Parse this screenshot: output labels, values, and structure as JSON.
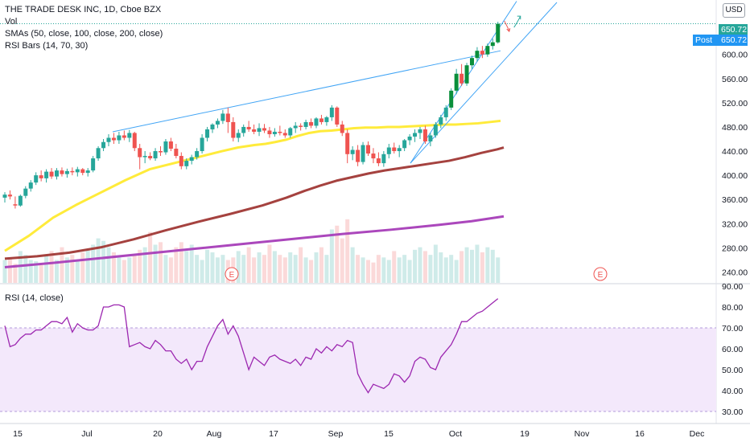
{
  "header": {
    "symbol_line": "THE TRADE DESK INC, 1D, Cboe BZX",
    "vol_label": "Vol",
    "sma_label": "SMAs (50, close, 100, close, 200, close)",
    "rsi_bars_label": "RSI Bars (14, 70, 30)",
    "currency": "USD"
  },
  "price_tags": {
    "last_price": "650.72",
    "post_label": "Post",
    "post_price": "650.72"
  },
  "rsi_pane": {
    "label": "RSI (14, close)"
  },
  "event_markers": [
    "E",
    "E"
  ],
  "chart_data": [
    {
      "type": "candlestick",
      "title": "THE TRADE DESK INC, 1D, Cboe BZX",
      "ylim": [
        222,
        690
      ],
      "y_ticks": [
        240,
        280,
        320,
        360,
        400,
        440,
        480,
        520,
        560,
        600
      ],
      "x_tick_labels": [
        "15",
        "Jul",
        "20",
        "Aug",
        "17",
        "Sep",
        "15",
        "Oct",
        "19",
        "Nov",
        "16",
        "Dec"
      ],
      "candles": [
        {
          "o": 363,
          "h": 372,
          "l": 355,
          "c": 368
        },
        {
          "o": 368,
          "h": 375,
          "l": 360,
          "c": 365
        },
        {
          "o": 352,
          "h": 365,
          "l": 345,
          "c": 350
        },
        {
          "o": 350,
          "h": 368,
          "l": 348,
          "c": 366
        },
        {
          "o": 366,
          "h": 382,
          "l": 362,
          "c": 378
        },
        {
          "o": 378,
          "h": 392,
          "l": 373,
          "c": 388
        },
        {
          "o": 388,
          "h": 405,
          "l": 384,
          "c": 400
        },
        {
          "o": 400,
          "h": 408,
          "l": 390,
          "c": 395
        },
        {
          "o": 395,
          "h": 410,
          "l": 388,
          "c": 406
        },
        {
          "o": 406,
          "h": 412,
          "l": 394,
          "c": 398
        },
        {
          "o": 398,
          "h": 412,
          "l": 393,
          "c": 408
        },
        {
          "o": 408,
          "h": 413,
          "l": 398,
          "c": 402
        },
        {
          "o": 402,
          "h": 411,
          "l": 396,
          "c": 407
        },
        {
          "o": 407,
          "h": 413,
          "l": 400,
          "c": 405
        },
        {
          "o": 405,
          "h": 414,
          "l": 398,
          "c": 410
        },
        {
          "o": 410,
          "h": 412,
          "l": 400,
          "c": 404
        },
        {
          "o": 404,
          "h": 412,
          "l": 398,
          "c": 408
        },
        {
          "o": 408,
          "h": 432,
          "l": 405,
          "c": 428
        },
        {
          "o": 428,
          "h": 448,
          "l": 424,
          "c": 445
        },
        {
          "o": 445,
          "h": 460,
          "l": 440,
          "c": 455
        },
        {
          "o": 455,
          "h": 468,
          "l": 448,
          "c": 462
        },
        {
          "o": 462,
          "h": 470,
          "l": 452,
          "c": 458
        },
        {
          "o": 458,
          "h": 472,
          "l": 452,
          "c": 466
        },
        {
          "o": 466,
          "h": 474,
          "l": 458,
          "c": 462
        },
        {
          "o": 462,
          "h": 475,
          "l": 455,
          "c": 470
        },
        {
          "o": 470,
          "h": 472,
          "l": 440,
          "c": 445
        },
        {
          "o": 445,
          "h": 452,
          "l": 410,
          "c": 430
        },
        {
          "o": 430,
          "h": 440,
          "l": 420,
          "c": 432
        },
        {
          "o": 432,
          "h": 438,
          "l": 425,
          "c": 428
        },
        {
          "o": 428,
          "h": 445,
          "l": 424,
          "c": 440
        },
        {
          "o": 440,
          "h": 448,
          "l": 432,
          "c": 438
        },
        {
          "o": 438,
          "h": 460,
          "l": 434,
          "c": 456
        },
        {
          "o": 456,
          "h": 462,
          "l": 440,
          "c": 444
        },
        {
          "o": 444,
          "h": 452,
          "l": 428,
          "c": 432
        },
        {
          "o": 432,
          "h": 438,
          "l": 410,
          "c": 415
        },
        {
          "o": 415,
          "h": 428,
          "l": 410,
          "c": 424
        },
        {
          "o": 424,
          "h": 434,
          "l": 418,
          "c": 430
        },
        {
          "o": 430,
          "h": 445,
          "l": 426,
          "c": 440
        },
        {
          "o": 440,
          "h": 468,
          "l": 436,
          "c": 462
        },
        {
          "o": 462,
          "h": 480,
          "l": 456,
          "c": 476
        },
        {
          "o": 476,
          "h": 486,
          "l": 470,
          "c": 484
        },
        {
          "o": 484,
          "h": 494,
          "l": 478,
          "c": 490
        },
        {
          "o": 490,
          "h": 508,
          "l": 485,
          "c": 502
        },
        {
          "o": 502,
          "h": 512,
          "l": 470,
          "c": 488
        },
        {
          "o": 488,
          "h": 496,
          "l": 456,
          "c": 462
        },
        {
          "o": 462,
          "h": 476,
          "l": 455,
          "c": 470
        },
        {
          "o": 470,
          "h": 484,
          "l": 464,
          "c": 480
        },
        {
          "o": 480,
          "h": 490,
          "l": 472,
          "c": 476
        },
        {
          "o": 476,
          "h": 484,
          "l": 468,
          "c": 472
        },
        {
          "o": 472,
          "h": 486,
          "l": 465,
          "c": 478
        },
        {
          "o": 478,
          "h": 485,
          "l": 470,
          "c": 474
        },
        {
          "o": 474,
          "h": 480,
          "l": 462,
          "c": 468
        },
        {
          "o": 468,
          "h": 478,
          "l": 464,
          "c": 472
        },
        {
          "o": 472,
          "h": 482,
          "l": 466,
          "c": 470
        },
        {
          "o": 470,
          "h": 476,
          "l": 462,
          "c": 466
        },
        {
          "o": 466,
          "h": 480,
          "l": 462,
          "c": 478
        },
        {
          "o": 478,
          "h": 488,
          "l": 470,
          "c": 482
        },
        {
          "o": 482,
          "h": 486,
          "l": 474,
          "c": 480
        },
        {
          "o": 480,
          "h": 492,
          "l": 476,
          "c": 488
        },
        {
          "o": 488,
          "h": 494,
          "l": 478,
          "c": 482
        },
        {
          "o": 482,
          "h": 496,
          "l": 478,
          "c": 494
        },
        {
          "o": 494,
          "h": 500,
          "l": 484,
          "c": 488
        },
        {
          "o": 488,
          "h": 498,
          "l": 482,
          "c": 496
        },
        {
          "o": 496,
          "h": 516,
          "l": 490,
          "c": 512
        },
        {
          "o": 512,
          "h": 514,
          "l": 480,
          "c": 484
        },
        {
          "o": 484,
          "h": 490,
          "l": 465,
          "c": 470
        },
        {
          "o": 470,
          "h": 476,
          "l": 420,
          "c": 435
        },
        {
          "o": 435,
          "h": 448,
          "l": 425,
          "c": 442
        },
        {
          "o": 442,
          "h": 450,
          "l": 415,
          "c": 422
        },
        {
          "o": 422,
          "h": 455,
          "l": 418,
          "c": 450
        },
        {
          "o": 450,
          "h": 456,
          "l": 432,
          "c": 436
        },
        {
          "o": 436,
          "h": 445,
          "l": 420,
          "c": 428
        },
        {
          "o": 428,
          "h": 438,
          "l": 415,
          "c": 420
        },
        {
          "o": 420,
          "h": 440,
          "l": 414,
          "c": 435
        },
        {
          "o": 435,
          "h": 452,
          "l": 428,
          "c": 446
        },
        {
          "o": 446,
          "h": 454,
          "l": 436,
          "c": 440
        },
        {
          "o": 440,
          "h": 450,
          "l": 430,
          "c": 445
        },
        {
          "o": 445,
          "h": 460,
          "l": 440,
          "c": 458
        },
        {
          "o": 458,
          "h": 468,
          "l": 450,
          "c": 464
        },
        {
          "o": 464,
          "h": 476,
          "l": 455,
          "c": 470
        },
        {
          "o": 470,
          "h": 480,
          "l": 460,
          "c": 476
        },
        {
          "o": 476,
          "h": 482,
          "l": 452,
          "c": 456
        },
        {
          "o": 456,
          "h": 470,
          "l": 448,
          "c": 466
        },
        {
          "o": 466,
          "h": 488,
          "l": 462,
          "c": 484
        },
        {
          "o": 484,
          "h": 500,
          "l": 478,
          "c": 496
        },
        {
          "o": 496,
          "h": 516,
          "l": 490,
          "c": 512
        },
        {
          "o": 512,
          "h": 544,
          "l": 508,
          "c": 540
        },
        {
          "o": 540,
          "h": 576,
          "l": 534,
          "c": 568
        },
        {
          "o": 568,
          "h": 584,
          "l": 548,
          "c": 552
        },
        {
          "o": 552,
          "h": 586,
          "l": 548,
          "c": 582
        },
        {
          "o": 582,
          "h": 598,
          "l": 576,
          "c": 594
        },
        {
          "o": 594,
          "h": 612,
          "l": 588,
          "c": 606
        },
        {
          "o": 606,
          "h": 614,
          "l": 594,
          "c": 600
        },
        {
          "o": 600,
          "h": 618,
          "l": 596,
          "c": 614
        },
        {
          "o": 614,
          "h": 626,
          "l": 608,
          "c": 620
        },
        {
          "o": 620,
          "h": 654,
          "l": 618,
          "c": 650.72
        }
      ],
      "sma_lines": [
        {
          "name": "SMA 50",
          "color": "#ffeb3b",
          "values": [
            [
              0,
              275
            ],
            [
              15,
              300
            ],
            [
              30,
              330
            ],
            [
              45,
              352
            ],
            [
              60,
              372
            ],
            [
              75,
              392
            ],
            [
              90,
              410
            ],
            [
              105,
              420
            ],
            [
              120,
              430
            ],
            [
              135,
              440
            ],
            [
              145,
              446
            ],
            [
              155,
              450
            ],
            [
              162,
              452
            ],
            [
              168,
              455
            ],
            [
              175,
              459
            ],
            [
              182,
              465
            ],
            [
              189,
              470
            ],
            [
              196,
              473
            ],
            [
              203,
              474
            ],
            [
              210,
              476
            ],
            [
              217,
              478
            ],
            [
              224,
              479
            ],
            [
              231,
              479
            ],
            [
              238,
              480
            ],
            [
              245,
              480
            ],
            [
              252,
              481
            ],
            [
              259,
              482
            ],
            [
              266,
              483
            ],
            [
              273,
              484
            ],
            [
              280,
              484
            ],
            [
              287,
              485
            ],
            [
              294,
              486
            ],
            [
              301,
              488
            ],
            [
              308,
              490
            ]
          ]
        },
        {
          "name": "SMA 100",
          "color": "#a5423f",
          "values": [
            [
              0,
              262
            ],
            [
              20,
              266
            ],
            [
              40,
              272
            ],
            [
              60,
              281
            ],
            [
              80,
              294
            ],
            [
              100,
              309
            ],
            [
              120,
              323
            ],
            [
              140,
              336
            ],
            [
              160,
              350
            ],
            [
              175,
              363
            ],
            [
              186,
              374
            ],
            [
              196,
              383
            ],
            [
              206,
              391
            ],
            [
              216,
              397
            ],
            [
              226,
              403
            ],
            [
              236,
              408
            ],
            [
              246,
              412
            ],
            [
              256,
              416
            ],
            [
              266,
              420
            ],
            [
              276,
              424
            ],
            [
              286,
              430
            ],
            [
              296,
              437
            ],
            [
              306,
              443
            ],
            [
              310,
              446
            ]
          ]
        },
        {
          "name": "SMA 200",
          "color": "#ab47bc",
          "values": [
            [
              0,
              248
            ],
            [
              30,
              255
            ],
            [
              60,
              263
            ],
            [
              90,
              271
            ],
            [
              120,
              279
            ],
            [
              150,
              287
            ],
            [
              180,
              295
            ],
            [
              210,
              303
            ],
            [
              240,
              310
            ],
            [
              270,
              318
            ],
            [
              290,
              324
            ],
            [
              310,
              332
            ]
          ]
        }
      ],
      "trend_lines": [
        {
          "from": {
            "i": 67,
            "v": 472
          },
          "to": {
            "i": 308,
            "v": 606
          }
        },
        {
          "from": {
            "i": 252,
            "v": 420
          },
          "to": {
            "i": 318,
            "v": 688
          }
        },
        {
          "from": {
            "i": 252,
            "v": 420
          },
          "to": {
            "i": 343,
            "v": 686
          }
        }
      ],
      "last_price_line": 650.72
    },
    {
      "type": "bar",
      "name": "Vol",
      "values": [
        18,
        20,
        15,
        25,
        22,
        18,
        17,
        14,
        22,
        25,
        18,
        28,
        20,
        22,
        18,
        24,
        26,
        30,
        35,
        33,
        28,
        24,
        20,
        18,
        20,
        22,
        26,
        28,
        40,
        30,
        32,
        22,
        20,
        28,
        32,
        25,
        30,
        22,
        18,
        26,
        24,
        20,
        22,
        18,
        20,
        25,
        22,
        28,
        20,
        24,
        22,
        30,
        25,
        22,
        20,
        24,
        22,
        28,
        20,
        18,
        24,
        28,
        22,
        42,
        45,
        35,
        50,
        28,
        22,
        20,
        18,
        16,
        22,
        20,
        18,
        25,
        20,
        22,
        18,
        26,
        28,
        25,
        22,
        30,
        24,
        20,
        22,
        18,
        25,
        28,
        26,
        30,
        24,
        28,
        26,
        20
      ]
    },
    {
      "type": "line",
      "name": "RSI (14, close)",
      "ylim": [
        25,
        90
      ],
      "y_ticks": [
        30,
        40,
        50,
        60,
        70,
        80,
        90
      ],
      "bands": {
        "upper": 70,
        "lower": 30
      },
      "values": [
        71,
        61,
        62,
        65,
        67,
        67,
        69,
        69,
        71,
        73,
        73,
        72,
        75,
        68,
        72,
        70,
        69,
        69,
        71,
        80,
        80,
        81,
        81,
        80,
        61,
        62,
        63,
        61,
        60,
        64,
        62,
        59,
        59,
        55,
        53,
        55,
        50,
        54,
        54,
        61,
        66,
        71,
        74,
        67,
        71,
        66,
        58,
        50,
        56,
        54,
        52,
        56,
        57,
        55,
        54,
        53,
        55,
        52,
        56,
        55,
        60,
        58,
        61,
        59,
        62,
        61,
        64,
        63,
        48,
        43,
        39,
        43,
        42,
        41,
        43,
        48,
        47,
        44,
        47,
        54,
        56,
        55,
        51,
        50,
        56,
        59,
        62,
        67,
        73,
        73,
        75,
        77,
        78,
        80,
        82,
        84
      ]
    }
  ]
}
